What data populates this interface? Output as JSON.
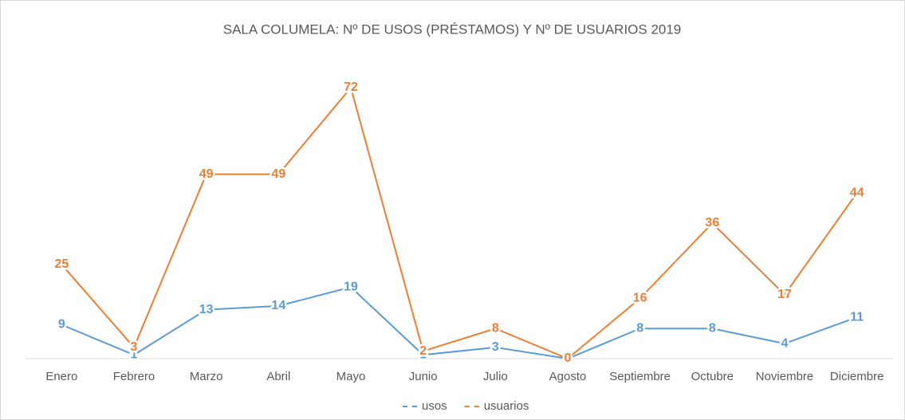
{
  "chart_data": {
    "type": "line",
    "title": "SALA COLUMELA: Nº DE USOS (PRÉSTAMOS) Y Nº DE USUARIOS 2019",
    "categories": [
      "Enero",
      "Febrero",
      "Marzo",
      "Abril",
      "Mayo",
      "Junio",
      "Julio",
      "Agosto",
      "Septiembre",
      "Octubre",
      "Noviembre",
      "Diciembre"
    ],
    "series": [
      {
        "name": "usos",
        "color": "#5b9bd5",
        "values": [
          9,
          1,
          13,
          14,
          19,
          1,
          3,
          0,
          8,
          8,
          4,
          11
        ]
      },
      {
        "name": "usuarios",
        "color": "#ed7d31",
        "values": [
          25,
          3,
          49,
          49,
          72,
          2,
          8,
          0,
          16,
          36,
          17,
          44
        ]
      }
    ],
    "legend": "bottom"
  }
}
